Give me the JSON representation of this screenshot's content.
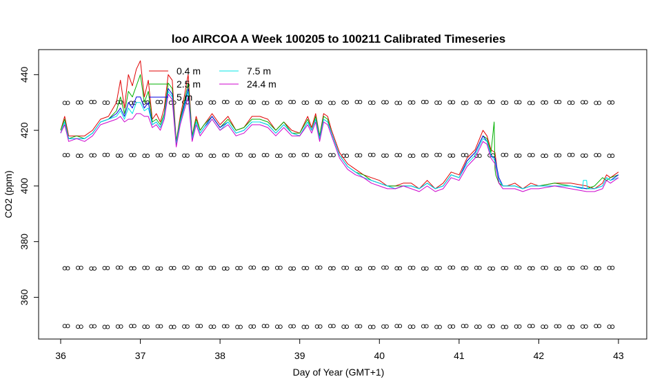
{
  "chart_data": {
    "type": "line",
    "title": "loo AIRCOA A  Week 100205 to 100211  Calibrated Timeseries",
    "xlabel": "Day of Year (GMT+1)",
    "ylabel": "CO2 (ppm)",
    "xlim": [
      36,
      43
    ],
    "ylim": [
      345,
      449
    ],
    "x_ticks": [
      36,
      37,
      38,
      39,
      40,
      41,
      42,
      43
    ],
    "y_ticks": [
      360,
      380,
      400,
      420,
      440
    ],
    "legend_position": "top-left",
    "reference_levels": {
      "description": "calibration standards (open circles)",
      "levels": [
        430,
        411,
        370.5,
        349.5
      ],
      "x_start": 36.05,
      "x_end": 43.0
    },
    "series": [
      {
        "name": "0.4 m",
        "color": "#e00000",
        "x": [
          36.0,
          36.05,
          36.1,
          36.2,
          36.3,
          36.4,
          36.5,
          36.6,
          36.7,
          36.75,
          36.8,
          36.85,
          36.9,
          36.95,
          37.0,
          37.05,
          37.1,
          37.15,
          37.2,
          37.25,
          37.3,
          37.35,
          37.4,
          37.45,
          37.5,
          37.55,
          37.6,
          37.65,
          37.7,
          37.75,
          37.8,
          37.9,
          38.0,
          38.1,
          38.2,
          38.3,
          38.4,
          38.5,
          38.6,
          38.7,
          38.8,
          38.9,
          39.0,
          39.1,
          39.15,
          39.2,
          39.25,
          39.3,
          39.35,
          39.4,
          39.5,
          39.6,
          39.7,
          39.8,
          39.9,
          40.0,
          40.1,
          40.2,
          40.3,
          40.4,
          40.5,
          40.6,
          40.7,
          40.8,
          40.9,
          41.0,
          41.1,
          41.2,
          41.3,
          41.35,
          41.4,
          41.45,
          41.5,
          41.55,
          41.6,
          41.7,
          41.8,
          41.9,
          42.0,
          42.2,
          42.4,
          42.6,
          42.7,
          42.8,
          42.85,
          42.9,
          43.0
        ],
        "y": [
          420,
          425,
          418,
          418,
          418,
          420,
          424,
          425,
          430,
          438,
          428,
          440,
          436,
          442,
          445,
          432,
          438,
          424,
          426,
          423,
          428,
          440,
          438,
          416,
          425,
          432,
          440,
          418,
          425,
          420,
          422,
          426,
          422,
          425,
          420,
          421,
          425,
          425,
          424,
          420,
          423,
          420,
          419,
          425,
          421,
          426,
          418,
          426,
          425,
          420,
          412,
          408,
          406,
          404,
          403,
          402,
          400,
          400,
          401,
          401,
          399,
          402,
          399,
          401,
          405,
          404,
          410,
          413,
          420,
          418,
          413,
          412,
          401,
          400,
          400,
          401,
          399,
          401,
          400,
          401,
          401,
          400,
          399,
          401,
          404,
          403,
          405
        ]
      },
      {
        "name": "2.5 m",
        "color": "#00b000",
        "x": [
          36.0,
          36.05,
          36.1,
          36.2,
          36.3,
          36.4,
          36.5,
          36.6,
          36.7,
          36.75,
          36.8,
          36.85,
          36.9,
          36.95,
          37.0,
          37.05,
          37.1,
          37.15,
          37.2,
          37.25,
          37.3,
          37.35,
          37.4,
          37.45,
          37.5,
          37.55,
          37.6,
          37.65,
          37.7,
          37.75,
          37.8,
          37.9,
          38.0,
          38.1,
          38.2,
          38.3,
          38.4,
          38.5,
          38.6,
          38.7,
          38.8,
          38.9,
          39.0,
          39.1,
          39.15,
          39.2,
          39.25,
          39.3,
          39.35,
          39.4,
          39.5,
          39.6,
          39.7,
          39.8,
          39.9,
          40.0,
          40.1,
          40.2,
          40.3,
          40.4,
          40.5,
          40.6,
          40.7,
          40.8,
          40.9,
          41.0,
          41.1,
          41.2,
          41.3,
          41.35,
          41.4,
          41.44,
          41.45,
          41.46,
          41.5,
          41.55,
          41.6,
          41.7,
          41.8,
          41.9,
          42.0,
          42.2,
          42.4,
          42.6,
          42.7,
          42.8,
          42.85,
          42.9,
          43.0
        ],
        "y": [
          420,
          424,
          417,
          418,
          417,
          419,
          423,
          424,
          427,
          432,
          426,
          434,
          432,
          436,
          440,
          430,
          434,
          423,
          424,
          422,
          426,
          437,
          435,
          416,
          424,
          430,
          437,
          418,
          424,
          420,
          422,
          425,
          421,
          424,
          420,
          421,
          424,
          424,
          423,
          420,
          423,
          419,
          419,
          424,
          420,
          425,
          418,
          425,
          424,
          419,
          411,
          407,
          405,
          404,
          402,
          401,
          400,
          400,
          400,
          400,
          399,
          401,
          399,
          400,
          404,
          403,
          409,
          412,
          418,
          417,
          412,
          423,
          406,
          404,
          401,
          400,
          400,
          400,
          399,
          400,
          400,
          401,
          400,
          399,
          400,
          403,
          402,
          403,
          404
        ]
      },
      {
        "name": "5 m",
        "color": "#0000e0",
        "x": [
          36.0,
          36.05,
          36.1,
          36.2,
          36.3,
          36.4,
          36.5,
          36.6,
          36.7,
          36.75,
          36.8,
          36.85,
          36.9,
          36.95,
          37.0,
          37.05,
          37.1,
          37.15,
          37.2,
          37.25,
          37.3,
          37.35,
          37.4,
          37.45,
          37.5,
          37.55,
          37.6,
          37.65,
          37.7,
          37.75,
          37.8,
          37.9,
          38.0,
          38.1,
          38.2,
          38.3,
          38.4,
          38.5,
          38.6,
          38.7,
          38.8,
          38.9,
          39.0,
          39.1,
          39.15,
          39.2,
          39.25,
          39.3,
          39.35,
          39.4,
          39.5,
          39.6,
          39.7,
          39.8,
          39.9,
          40.0,
          40.1,
          40.2,
          40.3,
          40.4,
          40.5,
          40.6,
          40.7,
          40.8,
          40.9,
          41.0,
          41.1,
          41.2,
          41.3,
          41.35,
          41.4,
          41.45,
          41.5,
          41.55,
          41.6,
          41.7,
          41.8,
          41.9,
          42.0,
          42.2,
          42.4,
          42.6,
          42.7,
          42.8,
          42.85,
          42.9,
          43.0
        ],
        "y": [
          419,
          423,
          417,
          417,
          417,
          419,
          423,
          424,
          426,
          428,
          425,
          430,
          428,
          432,
          432,
          428,
          430,
          422,
          423,
          421,
          425,
          435,
          433,
          415,
          423,
          429,
          435,
          417,
          423,
          419,
          421,
          425,
          421,
          423,
          419,
          420,
          423,
          423,
          422,
          419,
          422,
          419,
          418,
          423,
          420,
          424,
          417,
          424,
          423,
          419,
          411,
          407,
          405,
          403,
          402,
          401,
          400,
          399,
          400,
          400,
          399,
          401,
          399,
          400,
          404,
          403,
          409,
          412,
          418,
          416,
          411,
          410,
          403,
          400,
          400,
          400,
          399,
          400,
          400,
          400,
          400,
          399,
          399,
          400,
          403,
          402,
          404
        ]
      },
      {
        "name": "7.5 m",
        "color": "#00e5e5",
        "x": [
          36.0,
          36.05,
          36.1,
          36.2,
          36.3,
          36.4,
          36.5,
          36.6,
          36.7,
          36.75,
          36.8,
          36.85,
          36.9,
          36.95,
          37.0,
          37.05,
          37.1,
          37.15,
          37.2,
          37.25,
          37.3,
          37.35,
          37.4,
          37.45,
          37.5,
          37.55,
          37.6,
          37.65,
          37.7,
          37.75,
          37.8,
          37.9,
          38.0,
          38.1,
          38.2,
          38.3,
          38.4,
          38.5,
          38.6,
          38.7,
          38.8,
          38.9,
          39.0,
          39.1,
          39.15,
          39.2,
          39.25,
          39.3,
          39.35,
          39.4,
          39.5,
          39.6,
          39.7,
          39.8,
          39.9,
          40.0,
          40.1,
          40.2,
          40.3,
          40.4,
          40.5,
          40.6,
          40.7,
          40.8,
          40.9,
          41.0,
          41.1,
          41.2,
          41.3,
          41.35,
          41.4,
          41.45,
          41.5,
          41.55,
          41.6,
          41.7,
          41.8,
          41.9,
          42.0,
          42.2,
          42.4,
          42.55,
          42.56,
          42.6,
          42.61,
          42.7,
          42.8,
          42.85,
          42.9,
          43.0
        ],
        "y": [
          419,
          423,
          417,
          417,
          417,
          419,
          423,
          424,
          425,
          427,
          424,
          428,
          426,
          430,
          430,
          427,
          428,
          422,
          423,
          421,
          425,
          434,
          432,
          415,
          423,
          428,
          434,
          417,
          423,
          419,
          421,
          424,
          420,
          423,
          419,
          420,
          423,
          423,
          422,
          419,
          422,
          419,
          418,
          423,
          420,
          424,
          417,
          424,
          423,
          419,
          411,
          407,
          405,
          403,
          402,
          401,
          400,
          399,
          400,
          400,
          399,
          401,
          399,
          400,
          404,
          403,
          408,
          411,
          417,
          416,
          411,
          409,
          402,
          400,
          400,
          400,
          399,
          400,
          400,
          400,
          400,
          399,
          402,
          402,
          399,
          399,
          400,
          403,
          402,
          403
        ]
      },
      {
        "name": "24.4 m",
        "color": "#cc00cc",
        "x": [
          36.0,
          36.05,
          36.1,
          36.2,
          36.3,
          36.4,
          36.5,
          36.6,
          36.7,
          36.75,
          36.8,
          36.85,
          36.9,
          36.95,
          37.0,
          37.05,
          37.1,
          37.15,
          37.2,
          37.25,
          37.3,
          37.35,
          37.4,
          37.45,
          37.5,
          37.55,
          37.6,
          37.65,
          37.7,
          37.75,
          37.8,
          37.9,
          38.0,
          38.1,
          38.2,
          38.3,
          38.4,
          38.5,
          38.6,
          38.7,
          38.8,
          38.9,
          39.0,
          39.1,
          39.15,
          39.2,
          39.25,
          39.3,
          39.35,
          39.4,
          39.5,
          39.6,
          39.7,
          39.8,
          39.9,
          40.0,
          40.1,
          40.2,
          40.3,
          40.4,
          40.5,
          40.6,
          40.7,
          40.8,
          40.9,
          41.0,
          41.1,
          41.2,
          41.3,
          41.35,
          41.4,
          41.45,
          41.5,
          41.55,
          41.6,
          41.7,
          41.8,
          41.9,
          42.0,
          42.2,
          42.4,
          42.6,
          42.7,
          42.8,
          42.85,
          42.9,
          43.0
        ],
        "y": [
          419,
          422,
          416,
          417,
          416,
          418,
          422,
          423,
          424,
          425,
          423,
          424,
          424,
          426,
          426,
          425,
          425,
          421,
          422,
          420,
          424,
          433,
          431,
          414,
          422,
          427,
          432,
          416,
          422,
          418,
          420,
          424,
          420,
          422,
          418,
          419,
          422,
          422,
          421,
          418,
          421,
          418,
          418,
          422,
          419,
          423,
          416,
          423,
          422,
          418,
          410,
          406,
          404,
          403,
          401,
          400,
          399,
          399,
          400,
          399,
          398,
          400,
          398,
          399,
          403,
          402,
          407,
          410,
          416,
          415,
          410,
          408,
          401,
          399,
          399,
          399,
          398,
          399,
          399,
          400,
          399,
          398,
          398,
          399,
          402,
          401,
          403
        ]
      }
    ]
  }
}
